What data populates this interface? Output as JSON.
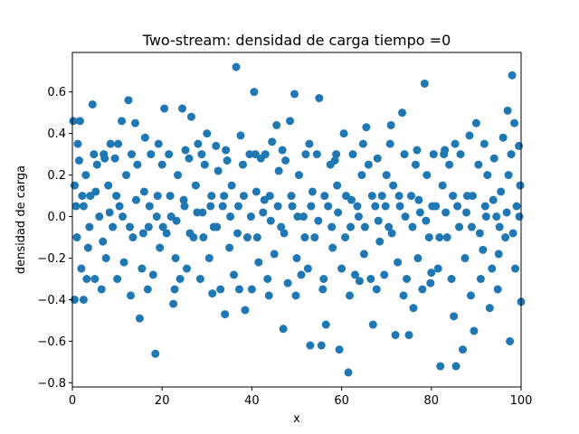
{
  "chart_data": {
    "type": "scatter",
    "title": "Two-stream: densidad de carga  tiempo =0",
    "xlabel": "x",
    "ylabel": "densidad de carga",
    "xlim": [
      0,
      100
    ],
    "ylim": [
      -0.82,
      0.79
    ],
    "xticks": [
      0,
      20,
      40,
      60,
      80,
      100
    ],
    "yticks": [
      -0.8,
      -0.6,
      -0.4,
      -0.2,
      0.0,
      0.2,
      0.4,
      0.6
    ],
    "ytick_labels": [
      "−0.8",
      "−0.6",
      "−0.4",
      "−0.2",
      "0.0",
      "0.2",
      "0.4",
      "0.6"
    ],
    "grid": false,
    "marker_color": "#1f77b4",
    "series": [
      {
        "points": [
          [
            0.2,
            0.46
          ],
          [
            0.5,
            -0.4
          ],
          [
            1.7,
            0.46
          ],
          [
            2.5,
            -0.4
          ],
          [
            4.5,
            0.54
          ],
          [
            4.8,
            0.3
          ],
          [
            6.5,
            -0.35
          ],
          [
            7.0,
            0.3
          ],
          [
            8.5,
            0.35
          ],
          [
            11.0,
            0.46
          ],
          [
            12.5,
            0.56
          ],
          [
            13.0,
            -0.38
          ],
          [
            14.0,
            0.45
          ],
          [
            15.0,
            -0.49
          ],
          [
            16.2,
            0.38
          ],
          [
            18.5,
            -0.66
          ],
          [
            20.5,
            0.52
          ],
          [
            22.5,
            -0.42
          ],
          [
            24.5,
            0.52
          ],
          [
            26.5,
            0.48
          ],
          [
            28.0,
            0.35
          ],
          [
            30.0,
            0.4
          ],
          [
            32.0,
            0.34
          ],
          [
            34.0,
            -0.47
          ],
          [
            36.5,
            0.72
          ],
          [
            37.5,
            0.39
          ],
          [
            38.5,
            -0.45
          ],
          [
            40.5,
            0.6
          ],
          [
            42.0,
            0.28
          ],
          [
            44.5,
            0.36
          ],
          [
            45.5,
            0.44
          ],
          [
            47.0,
            -0.54
          ],
          [
            48.5,
            0.46
          ],
          [
            49.5,
            0.59
          ],
          [
            51.0,
            -0.28
          ],
          [
            53.0,
            -0.62
          ],
          [
            55.0,
            0.57
          ],
          [
            55.5,
            -0.62
          ],
          [
            56.5,
            -0.52
          ],
          [
            58.5,
            0.27
          ],
          [
            59.5,
            -0.64
          ],
          [
            60.5,
            0.4
          ],
          [
            61.5,
            -0.75
          ],
          [
            64.0,
            -0.31
          ],
          [
            65.5,
            0.43
          ],
          [
            67.0,
            -0.52
          ],
          [
            69.0,
            0.1
          ],
          [
            71.0,
            0.44
          ],
          [
            72.0,
            -0.57
          ],
          [
            73.5,
            0.5
          ],
          [
            75.0,
            -0.57
          ],
          [
            76.0,
            -0.44
          ],
          [
            78.5,
            0.64
          ],
          [
            80.0,
            -0.27
          ],
          [
            82.0,
            -0.72
          ],
          [
            83.0,
            0.32
          ],
          [
            85.0,
            -0.48
          ],
          [
            85.5,
            -0.72
          ],
          [
            87.0,
            -0.64
          ],
          [
            88.5,
            0.39
          ],
          [
            89.5,
            -0.55
          ],
          [
            90.0,
            0.45
          ],
          [
            91.5,
            -0.16
          ],
          [
            93.0,
            -0.44
          ],
          [
            94.0,
            0.28
          ],
          [
            96.0,
            0.38
          ],
          [
            97.0,
            0.51
          ],
          [
            97.5,
            -0.6
          ],
          [
            98.0,
            0.68
          ],
          [
            98.5,
            0.45
          ],
          [
            99.5,
            0.34
          ],
          [
            100.0,
            -0.41
          ],
          [
            0.5,
            0.15
          ],
          [
            1.0,
            -0.1
          ],
          [
            1.5,
            0.27
          ],
          [
            2.0,
            -0.25
          ],
          [
            2.5,
            0.05
          ],
          [
            3.0,
            0.2
          ],
          [
            3.5,
            -0.15
          ],
          [
            4.0,
            0.1
          ],
          [
            5.0,
            -0.3
          ],
          [
            5.5,
            0.25
          ],
          [
            6.0,
            0.0
          ],
          [
            7.5,
            -0.2
          ],
          [
            8.0,
            0.15
          ],
          [
            9.0,
            -0.05
          ],
          [
            9.5,
            0.28
          ],
          [
            10.0,
            -0.3
          ],
          [
            10.5,
            0.05
          ],
          [
            11.5,
            -0.22
          ],
          [
            12.0,
            0.2
          ],
          [
            13.5,
            -0.1
          ],
          [
            14.5,
            0.25
          ],
          [
            15.5,
            -0.25
          ],
          [
            16.0,
            0.12
          ],
          [
            17.0,
            -0.05
          ],
          [
            17.5,
            0.3
          ],
          [
            18.0,
            -0.28
          ],
          [
            19.0,
            0.1
          ],
          [
            19.5,
            -0.15
          ],
          [
            20.0,
            0.25
          ],
          [
            21.0,
            -0.08
          ],
          [
            21.5,
            0.3
          ],
          [
            22.0,
            0.0
          ],
          [
            23.0,
            -0.2
          ],
          [
            23.5,
            0.2
          ],
          [
            24.0,
            -0.3
          ],
          [
            25.0,
            0.05
          ],
          [
            25.5,
            -0.25
          ],
          [
            26.0,
            0.28
          ],
          [
            27.0,
            -0.1
          ],
          [
            27.5,
            0.15
          ],
          [
            28.5,
            -0.3
          ],
          [
            29.0,
            0.02
          ],
          [
            29.5,
            0.25
          ],
          [
            30.5,
            -0.2
          ],
          [
            31.0,
            0.1
          ],
          [
            31.5,
            -0.05
          ],
          [
            32.5,
            0.22
          ],
          [
            33.0,
            -0.35
          ],
          [
            33.5,
            0.05
          ],
          [
            34.5,
            0.27
          ],
          [
            35.0,
            -0.15
          ],
          [
            35.5,
            0.15
          ],
          [
            36.0,
            -0.28
          ],
          [
            37.0,
            0.05
          ],
          [
            38.0,
            0.25
          ],
          [
            39.0,
            -0.1
          ],
          [
            39.5,
            0.3
          ],
          [
            40.0,
            -0.35
          ],
          [
            41.0,
            0.12
          ],
          [
            41.5,
            -0.22
          ],
          [
            42.5,
            0.02
          ],
          [
            43.0,
            0.3
          ],
          [
            43.5,
            -0.3
          ],
          [
            44.0,
            0.1
          ],
          [
            45.0,
            -0.18
          ],
          [
            46.0,
            0.22
          ],
          [
            46.5,
            -0.05
          ],
          [
            47.5,
            0.27
          ],
          [
            48.0,
            -0.32
          ],
          [
            49.0,
            0.05
          ],
          [
            50.0,
            -0.2
          ],
          [
            50.5,
            0.2
          ],
          [
            51.5,
            0.0
          ],
          [
            52.0,
            0.3
          ],
          [
            52.5,
            -0.25
          ],
          [
            53.5,
            0.12
          ],
          [
            54.0,
            -0.1
          ],
          [
            54.5,
            0.3
          ],
          [
            56.0,
            -0.3
          ],
          [
            57.0,
            0.05
          ],
          [
            57.5,
            0.25
          ],
          [
            58.0,
            -0.15
          ],
          [
            59.0,
            0.15
          ],
          [
            60.0,
            -0.25
          ],
          [
            61.0,
            0.1
          ],
          [
            62.0,
            -0.05
          ],
          [
            62.5,
            0.3
          ],
          [
            63.0,
            -0.28
          ],
          [
            63.5,
            0.05
          ],
          [
            64.5,
            0.2
          ],
          [
            65.0,
            -0.18
          ],
          [
            66.0,
            0.25
          ],
          [
            66.5,
            -0.3
          ],
          [
            67.5,
            0.05
          ],
          [
            68.0,
            0.28
          ],
          [
            68.5,
            -0.12
          ],
          [
            69.5,
            -0.28
          ],
          [
            70.0,
            0.2
          ],
          [
            70.5,
            -0.05
          ],
          [
            71.5,
            0.15
          ],
          [
            72.5,
            -0.22
          ],
          [
            73.0,
            0.05
          ],
          [
            74.0,
            0.3
          ],
          [
            74.5,
            -0.3
          ],
          [
            75.5,
            0.1
          ],
          [
            76.5,
            0.25
          ],
          [
            77.0,
            -0.2
          ],
          [
            77.5,
            0.02
          ],
          [
            78.0,
            -0.35
          ],
          [
            79.0,
            0.2
          ],
          [
            79.5,
            -0.1
          ],
          [
            80.5,
            0.3
          ],
          [
            81.0,
            0.05
          ],
          [
            81.5,
            -0.25
          ],
          [
            82.5,
            0.15
          ],
          [
            83.5,
            -0.1
          ],
          [
            84.0,
            0.25
          ],
          [
            84.5,
            -0.3
          ],
          [
            85.8,
            0.05
          ],
          [
            86.5,
            0.3
          ],
          [
            87.5,
            -0.2
          ],
          [
            88.0,
            0.1
          ],
          [
            89.0,
            -0.05
          ],
          [
            90.5,
            0.25
          ],
          [
            91.0,
            -0.3
          ],
          [
            92.0,
            0.05
          ],
          [
            92.5,
            0.2
          ],
          [
            93.5,
            -0.25
          ],
          [
            94.5,
            0.0
          ],
          [
            95.0,
            -0.18
          ],
          [
            95.5,
            0.12
          ],
          [
            96.5,
            -0.1
          ],
          [
            97.2,
            0.2
          ],
          [
            98.7,
            -0.25
          ],
          [
            99.0,
            0.05
          ],
          [
            99.8,
            0.15
          ],
          [
            0.8,
            0.05
          ],
          [
            2.2,
            0.1
          ],
          [
            3.8,
            -0.05
          ],
          [
            5.2,
            0.12
          ],
          [
            6.8,
            -0.12
          ],
          [
            8.3,
            0.02
          ],
          [
            9.8,
            0.1
          ],
          [
            11.2,
            0.0
          ],
          [
            12.8,
            -0.05
          ],
          [
            14.2,
            0.08
          ],
          [
            15.8,
            -0.08
          ],
          [
            17.2,
            0.05
          ],
          [
            18.8,
            0.0
          ],
          [
            20.2,
            -0.05
          ],
          [
            21.8,
            0.1
          ],
          [
            23.2,
            -0.02
          ],
          [
            24.8,
            0.08
          ],
          [
            26.2,
            -0.08
          ],
          [
            27.8,
            0.02
          ],
          [
            29.2,
            -0.1
          ],
          [
            30.8,
            0.05
          ],
          [
            32.2,
            -0.05
          ],
          [
            33.8,
            0.1
          ],
          [
            35.2,
            0.0
          ],
          [
            36.8,
            -0.08
          ],
          [
            38.2,
            0.1
          ],
          [
            39.8,
            0.0
          ],
          [
            41.2,
            -0.1
          ],
          [
            42.8,
            0.08
          ],
          [
            44.2,
            -0.02
          ],
          [
            45.8,
            0.05
          ],
          [
            47.2,
            -0.08
          ],
          [
            48.8,
            0.1
          ],
          [
            50.2,
            0.0
          ],
          [
            51.8,
            -0.1
          ],
          [
            53.2,
            0.05
          ],
          [
            54.8,
            -0.02
          ],
          [
            56.2,
            0.1
          ],
          [
            57.8,
            -0.05
          ],
          [
            59.2,
            0.02
          ],
          [
            60.8,
            -0.1
          ],
          [
            62.2,
            0.08
          ],
          [
            63.8,
            0.0
          ],
          [
            65.2,
            -0.05
          ],
          [
            66.8,
            0.1
          ],
          [
            68.2,
            -0.02
          ],
          [
            69.8,
            0.05
          ],
          [
            71.2,
            -0.08
          ],
          [
            72.8,
            0.1
          ],
          [
            74.2,
            0.0
          ],
          [
            75.8,
            -0.05
          ],
          [
            77.2,
            0.08
          ],
          [
            78.8,
            -0.02
          ],
          [
            80.2,
            0.05
          ],
          [
            81.8,
            -0.1
          ],
          [
            83.2,
            0.02
          ],
          [
            84.8,
            0.1
          ],
          [
            86.2,
            -0.05
          ],
          [
            87.8,
            0.02
          ],
          [
            89.2,
            0.1
          ],
          [
            90.8,
            -0.08
          ],
          [
            92.2,
            0.0
          ],
          [
            93.8,
            0.08
          ],
          [
            95.2,
            -0.05
          ],
          [
            96.8,
            0.02
          ],
          [
            98.2,
            -0.08
          ],
          [
            99.6,
            0.0
          ],
          [
            1.2,
            0.35
          ],
          [
            3.2,
            -0.3
          ],
          [
            7.2,
            0.28
          ],
          [
            10.2,
            0.35
          ],
          [
            13.2,
            0.3
          ],
          [
            16.8,
            -0.35
          ],
          [
            19.2,
            0.35
          ],
          [
            22.8,
            -0.35
          ],
          [
            25.2,
            0.32
          ],
          [
            28.8,
            0.3
          ],
          [
            31.2,
            -0.37
          ],
          [
            34.2,
            0.32
          ],
          [
            37.2,
            -0.35
          ],
          [
            40.8,
            0.3
          ],
          [
            43.8,
            -0.38
          ],
          [
            46.8,
            0.32
          ],
          [
            49.8,
            -0.38
          ],
          [
            52.8,
            0.35
          ],
          [
            55.8,
            -0.35
          ],
          [
            58.8,
            0.3
          ],
          [
            61.8,
            -0.38
          ],
          [
            64.8,
            0.35
          ],
          [
            67.8,
            -0.35
          ],
          [
            70.8,
            0.35
          ],
          [
            73.8,
            -0.38
          ],
          [
            76.8,
            0.32
          ],
          [
            79.8,
            -0.32
          ],
          [
            82.8,
            0.3
          ],
          [
            85.3,
            0.35
          ],
          [
            88.8,
            -0.38
          ],
          [
            91.8,
            0.35
          ],
          [
            94.8,
            -0.35
          ],
          [
            97.8,
            0.3
          ]
        ]
      }
    ]
  }
}
